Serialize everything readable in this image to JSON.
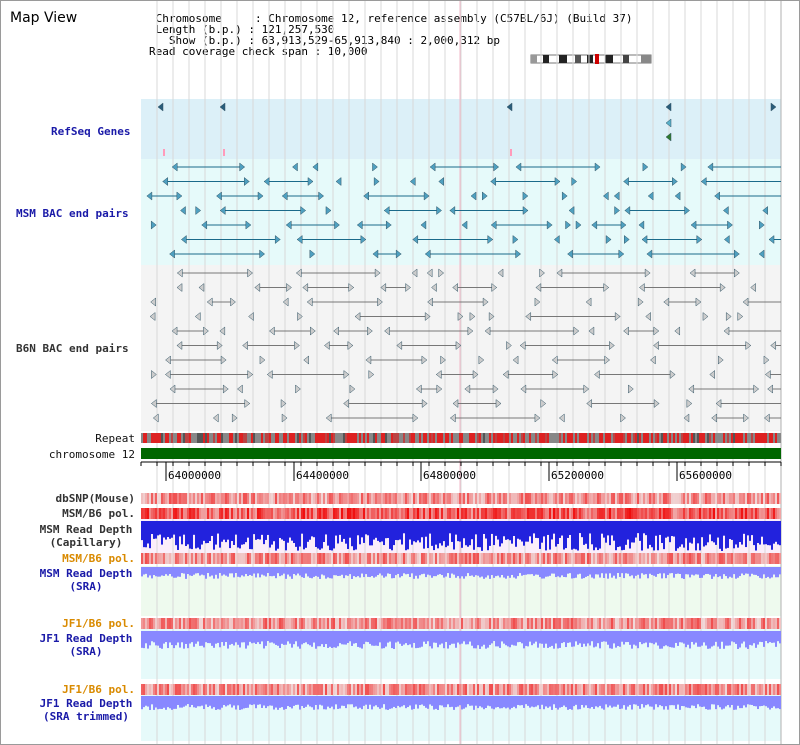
{
  "view": {
    "title": "Map View",
    "info_lines": [
      " Chromosome     : Chromosome 12, reference assembly (C57BL/6J) (Build 37)",
      " Length (b.p.) : 121,257,530",
      "   Show (b.p.) : 63,913,529-65,913,840 : 2,000,312 bp",
      "Read coverage check span : 10,000"
    ]
  },
  "tracks": {
    "refseq": "RefSeq Genes",
    "msm_bac": "MSM BAC end pairs",
    "b6n_bac": "B6N BAC end pairs",
    "repeat": "Repeat",
    "chromosome": "chromosome 12",
    "dbsnp": "dbSNP(Mouse)",
    "msm_pol_1": "MSM/B6 pol.",
    "msm_depth_cap_1": "MSM Read Depth",
    "msm_depth_cap_2": "(Capillary)",
    "msm_pol_2": "MSM/B6 pol.",
    "msm_depth_sra_1": "MSM Read Depth",
    "msm_depth_sra_2": "(SRA)",
    "jf1_pol_1": "JF1/B6 pol.",
    "jf1_depth_1": "JF1 Read Depth",
    "jf1_depth_2": "(SRA)",
    "jf1_pol_2": "JF1/B6 pol.",
    "jf1_trim_1": "JF1 Read Depth",
    "jf1_trim_2": "(SRA trimmed)"
  },
  "axis": {
    "ticks": [
      "64000000",
      "64400000",
      "64800000",
      "65200000",
      "65600000"
    ]
  },
  "colors": {
    "refseq_bg": "#dcf0f8",
    "msm_bg": "#e6fafa",
    "b6n_bg": "#f4f4f4",
    "chromosome": "#006600",
    "depth_dark": "#2222dd",
    "depth_light": "#8888ff",
    "pol_red": "#e03030",
    "label_blue": "#1a1aa8",
    "label_orange": "#d98a00"
  }
}
